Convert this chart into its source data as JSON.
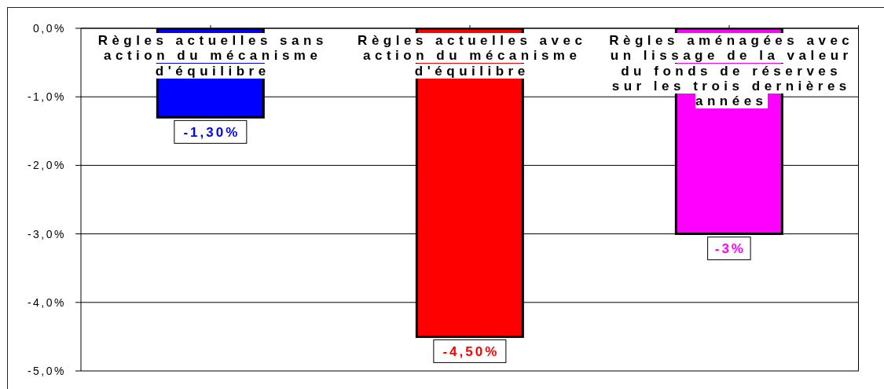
{
  "chart_data": {
    "type": "bar",
    "categories": [
      "Règles actuelles sans action du mécanisme d'équilibre",
      "Règles actuelles avec action du mécanisme d'équilibre",
      "Règles aménagées avec un lissage de la valeur du fonds de réserves sur les trois dernières années"
    ],
    "values": [
      -1.3,
      -4.5,
      -3
    ],
    "colors": [
      "#0000ff",
      "#ff0000",
      "#ff00ff"
    ],
    "value_labels": [
      "-1,30%",
      "-4,50%",
      "-3%"
    ],
    "ylim": [
      -5,
      0
    ],
    "yticks": [
      {
        "value": 0,
        "label": "0,0%"
      },
      {
        "value": -1,
        "label": "-1,0%"
      },
      {
        "value": -2,
        "label": "-2,0%"
      },
      {
        "value": -3,
        "label": "-3,0%"
      },
      {
        "value": -4,
        "label": "-4,0%"
      },
      {
        "value": -5,
        "label": "-5,0%"
      }
    ],
    "grid": "y"
  }
}
